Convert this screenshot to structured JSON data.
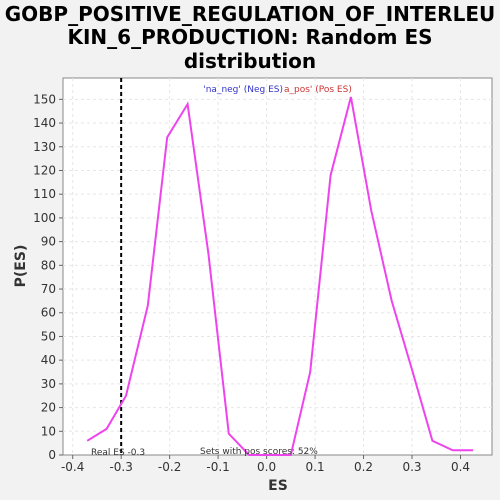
{
  "title_lines": [
    "GOBP_POSITIVE_REGULATION_OF_INTERLEU",
    "KIN_6_PRODUCTION: Random ES",
    "distribution"
  ],
  "colors": {
    "background": "#f2f2f2",
    "plot_bg": "#ffffff",
    "line": "#ee44ee",
    "neg_legend": "#3333cc",
    "pos_legend": "#cc3333",
    "grid": "#e6e6e6"
  },
  "legend": {
    "neg": "'na_neg' (Neg ES)",
    "pos": "a_pos' (Pos ES)"
  },
  "annotations": {
    "real_es": "Real ES -0.3",
    "pos_scores": "Sets with pos scores: 52%"
  },
  "chart_data": {
    "type": "line",
    "title": "GOBP_POSITIVE_REGULATION_OF_INTERLEUKIN_6_PRODUCTION: Random ES distribution",
    "xlabel": "ES",
    "ylabel": "P(ES)",
    "xlim": [
      -0.42,
      0.465
    ],
    "ylim": [
      0,
      159
    ],
    "xticks": [
      -0.4,
      -0.3,
      -0.2,
      -0.1,
      0.0,
      0.1,
      0.2,
      0.3,
      0.4
    ],
    "xtick_labels": [
      "-0.4",
      "-0.3",
      "-0.2",
      "-0.1",
      "0.0",
      "0.1",
      "0.2",
      "0.3",
      "0.4"
    ],
    "yticks": [
      0,
      10,
      20,
      30,
      40,
      50,
      60,
      70,
      80,
      90,
      100,
      110,
      120,
      130,
      140,
      150
    ],
    "ytick_labels": [
      "0",
      "10",
      "20",
      "30",
      "40",
      "50",
      "60",
      "70",
      "80",
      "90",
      "100",
      "110",
      "120",
      "130",
      "140",
      "150"
    ],
    "grid": true,
    "real_es": -0.3,
    "series": [
      {
        "x": [
          -0.37,
          -0.33,
          -0.29,
          -0.245,
          -0.205,
          -0.163,
          -0.12,
          -0.078,
          -0.036,
          0.005,
          0.05,
          0.09,
          0.132,
          0.174,
          0.216,
          0.258,
          0.3,
          0.342,
          0.384,
          0.426
        ],
        "y": [
          6,
          11,
          25,
          63,
          134,
          148,
          85,
          9,
          0,
          0,
          0,
          35,
          118,
          151,
          103,
          65,
          36,
          6,
          2,
          2
        ]
      }
    ]
  }
}
